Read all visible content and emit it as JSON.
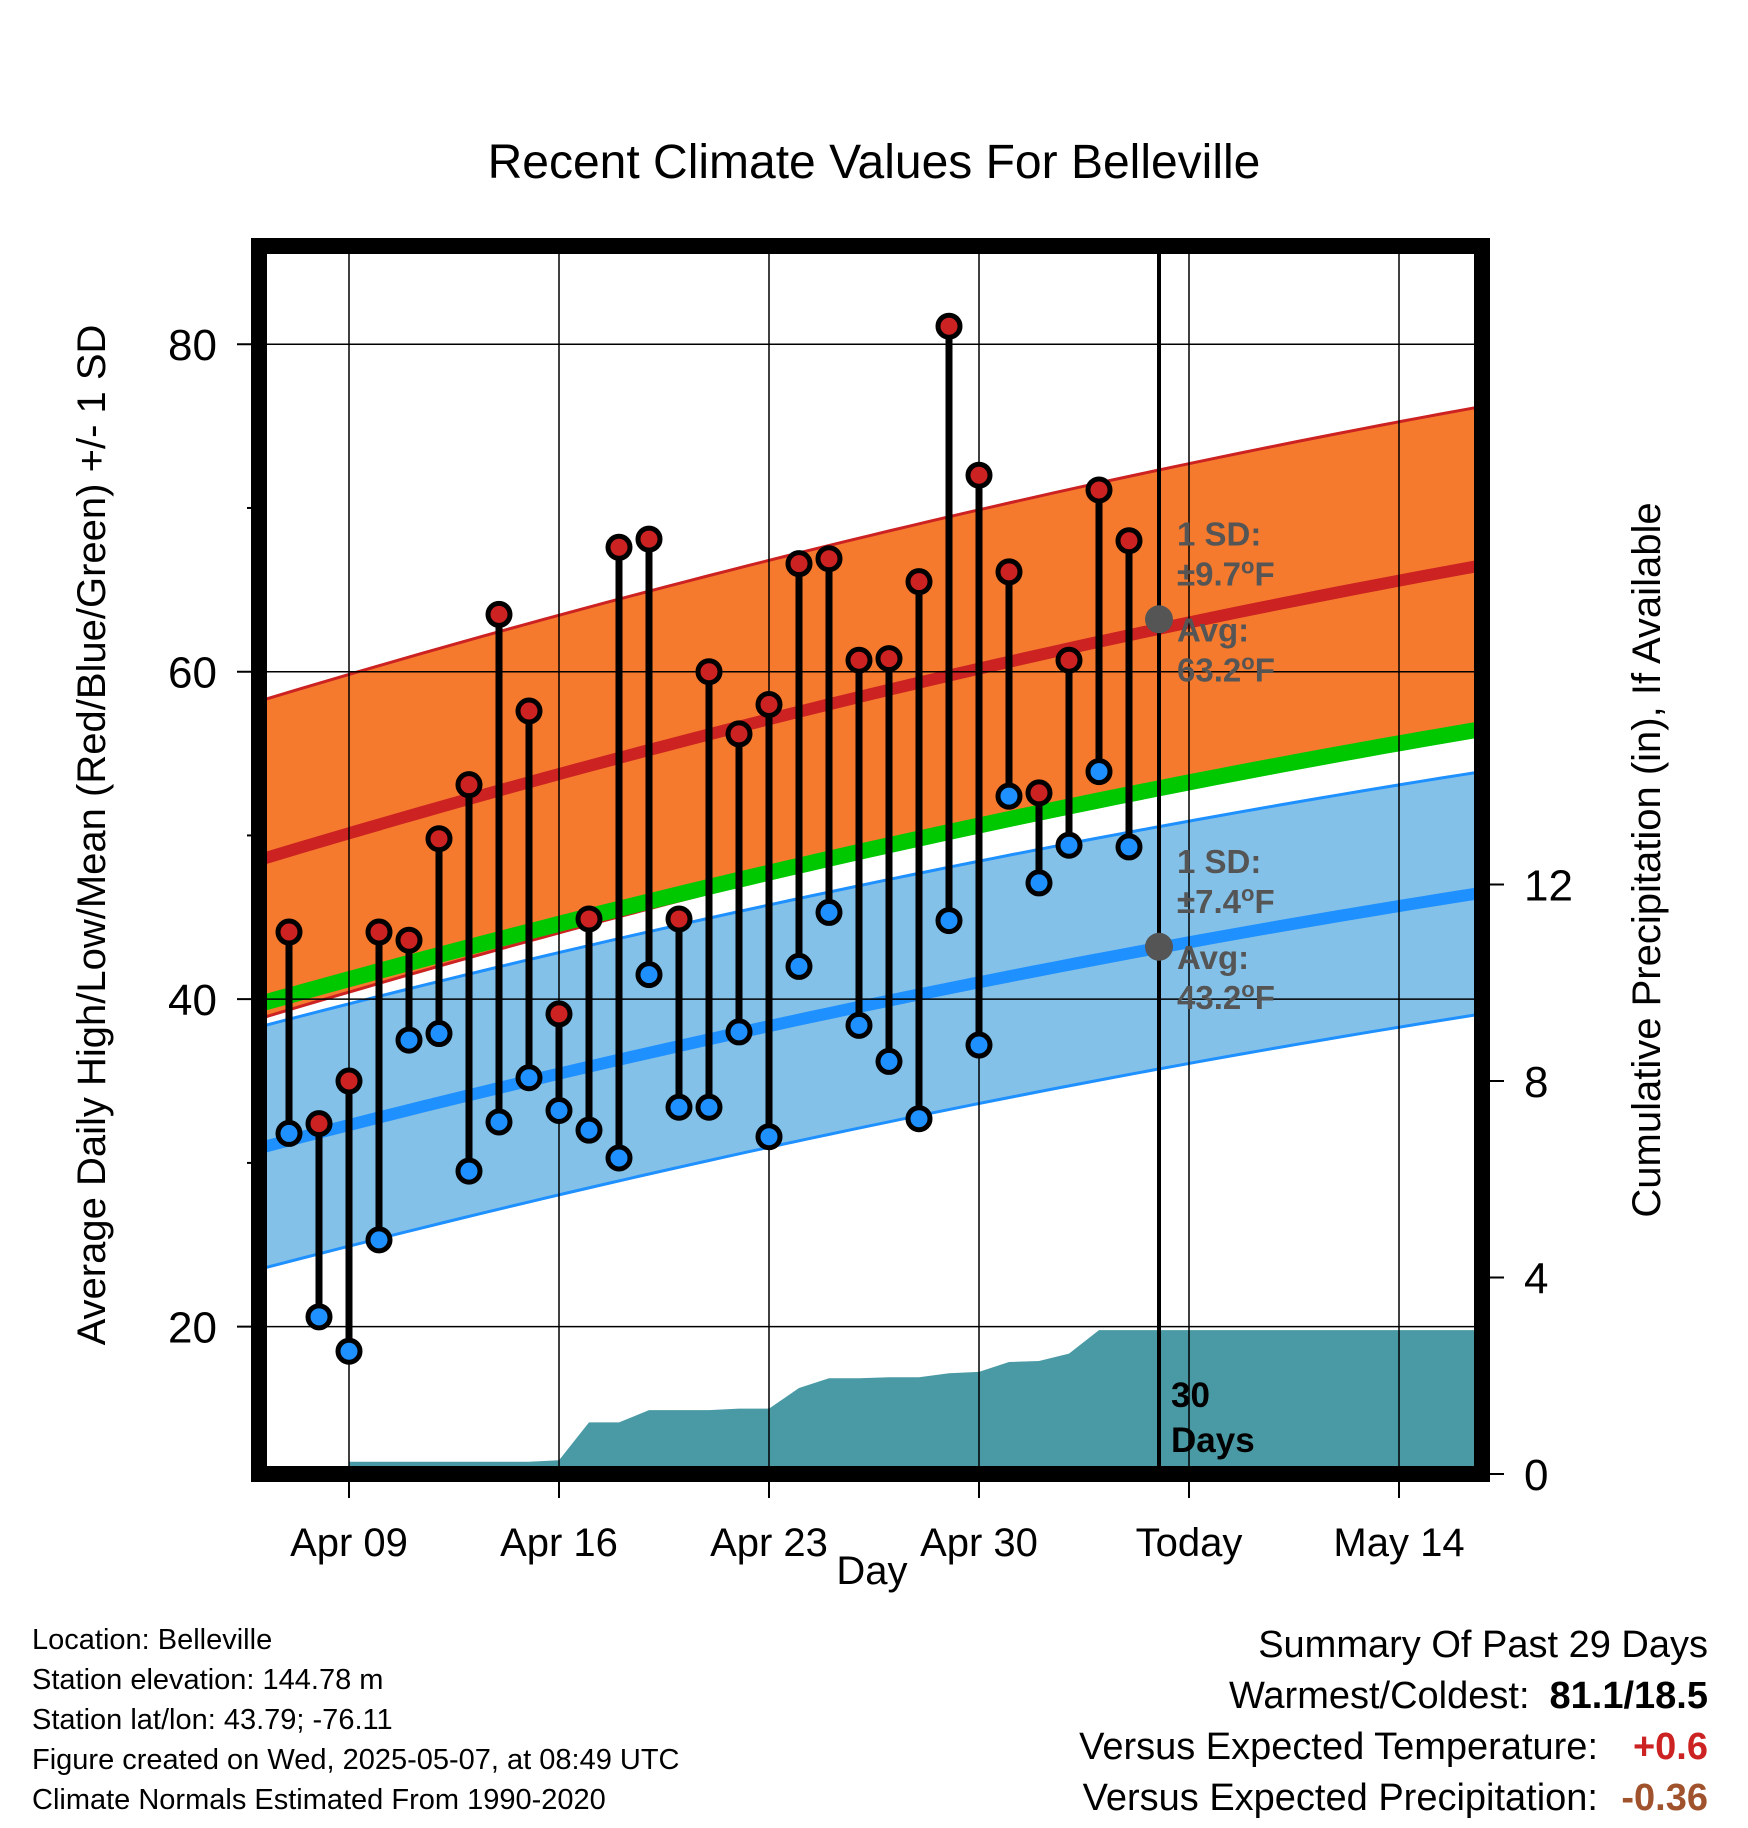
{
  "chart_data": {
    "type": "line",
    "title": "Recent Climate Values For Belleville",
    "xlabel": "Day",
    "ylabel": "Average Daily High/Low/Mean (Red/Blue/Green) +/- 1 SD",
    "ylabel_right": "Cumulative Precipitation (in), If Available",
    "x_ticks": [
      "Apr 09",
      "Apr 16",
      "Apr 23",
      "Apr 30",
      "Today",
      "May 14"
    ],
    "y_ticks": [
      20,
      40,
      60,
      80
    ],
    "y_right_ticks": [
      0,
      4,
      8,
      12
    ],
    "ylim": [
      11,
      86
    ],
    "y_right_lim": [
      0,
      25
    ],
    "grid": true,
    "days": [
      "Apr 07",
      "Apr 08",
      "Apr 09",
      "Apr 10",
      "Apr 11",
      "Apr 12",
      "Apr 13",
      "Apr 14",
      "Apr 15",
      "Apr 16",
      "Apr 17",
      "Apr 18",
      "Apr 19",
      "Apr 20",
      "Apr 21",
      "Apr 22",
      "Apr 23",
      "Apr 24",
      "Apr 25",
      "Apr 26",
      "Apr 27",
      "Apr 28",
      "Apr 29",
      "Apr 30",
      "May 01",
      "May 02",
      "May 03",
      "May 04",
      "May 05"
    ],
    "highs": [
      44.1,
      32.4,
      35.0,
      44.1,
      43.6,
      49.8,
      53.1,
      63.5,
      57.6,
      39.1,
      44.9,
      67.6,
      68.1,
      44.9,
      60.0,
      56.2,
      58.0,
      66.6,
      66.9,
      60.7,
      60.8,
      65.5,
      81.1,
      72.0,
      66.1,
      52.6,
      60.7,
      71.1,
      68.0
    ],
    "lows": [
      31.8,
      20.6,
      18.5,
      25.3,
      37.5,
      37.9,
      29.5,
      32.5,
      35.2,
      33.2,
      32.0,
      30.3,
      41.5,
      33.4,
      33.4,
      38.0,
      31.6,
      42.0,
      45.3,
      38.4,
      36.2,
      32.7,
      44.8,
      37.2,
      52.4,
      47.1,
      49.4,
      53.9,
      49.3
    ],
    "normal_high": {
      "start": 48.5,
      "today": 63.2,
      "end": 66.5,
      "sd": 9.7
    },
    "normal_low": {
      "start": 30.9,
      "today": 43.2,
      "end": 46.5,
      "sd": 7.4
    },
    "normal_mean": {
      "start": 39.7,
      "end": 56.5
    },
    "precip_cumulative": [
      0.0,
      0.2,
      0.25,
      0.25,
      0.25,
      0.25,
      0.25,
      0.25,
      0.25,
      0.28,
      1.05,
      1.05,
      1.3,
      1.3,
      1.3,
      1.33,
      1.33,
      1.75,
      1.95,
      1.95,
      1.97,
      1.97,
      2.05,
      2.08,
      2.28,
      2.3,
      2.45,
      2.93,
      2.93
    ],
    "today_index": 29,
    "series": [
      {
        "name": "High",
        "color": "#cc2222"
      },
      {
        "name": "Low",
        "color": "#1e90ff"
      },
      {
        "name": "Mean",
        "color": "#00c800"
      }
    ],
    "annotations": {
      "high_sd_label": "1 SD:",
      "high_sd_value": "±9.7°F",
      "high_avg_label": "Avg:",
      "high_avg_value": "63.2°F",
      "low_sd_label": "1 SD:",
      "low_sd_value": "±7.4°F",
      "low_avg_label": "Avg:",
      "low_avg_value": "43.2°F",
      "window_number": "30",
      "window_label": "Days"
    }
  },
  "colors": {
    "high_band": "#f57a2e",
    "high_line": "#cc2222",
    "low_band": "#83c1e9",
    "low_line": "#1e90ff",
    "mean_band": "#00c800",
    "precip": "#4a9aa5",
    "annotation_text": "#555555",
    "warm_value": "#cc2222",
    "precip_value": "#a0522d"
  },
  "meta": {
    "location": "Location: Belleville",
    "elevation": "Station elevation: 144.78 m",
    "latlon": "Station lat/lon: 43.79; -76.11",
    "created": "Figure created on Wed, 2025-05-07, at 08:49 UTC",
    "normals": "Climate Normals Estimated From 1990-2020"
  },
  "summary": {
    "title": "Summary Of Past 29 Days",
    "warmest_label": "Warmest/Coldest:",
    "warmest_value": "81.1/18.5",
    "temp_label": "Versus Expected Temperature:",
    "temp_value": "+0.6",
    "precip_label": "Versus Expected Precipitation:",
    "precip_value": "-0.36"
  }
}
